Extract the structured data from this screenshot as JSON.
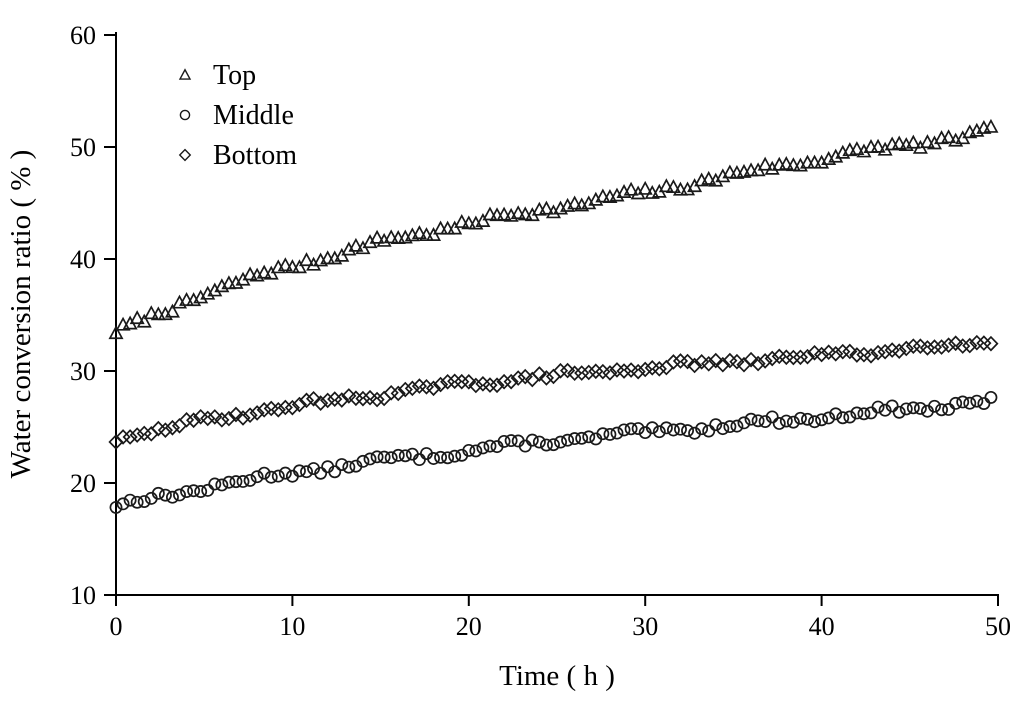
{
  "figure": {
    "background": "#ffffff",
    "stroke_color": "#1a1a1a",
    "axis_color": "#000000"
  },
  "chart_data": {
    "type": "scatter",
    "title": "",
    "xlabel": "Time ( h )",
    "ylabel": "Water conversion ratio ( % )",
    "xlim": [
      0,
      50
    ],
    "ylim": [
      10,
      60
    ],
    "x_ticks": [
      0,
      10,
      20,
      30,
      40,
      50
    ],
    "y_ticks": [
      10,
      20,
      30,
      40,
      50,
      60
    ],
    "grid": false,
    "legend_position": "top-left-inside",
    "sample_step_h": 0.4,
    "t_max": 49.6,
    "anchor_t": [
      0,
      5,
      10,
      15,
      20,
      25,
      30,
      35,
      40,
      45,
      50
    ],
    "series": [
      {
        "name": "Top",
        "marker": "triangle",
        "anchors": [
          33.4,
          36.9,
          39.4,
          41.5,
          43.2,
          44.6,
          45.9,
          47.5,
          49.0,
          50.2,
          51.4
        ],
        "noise": 0.32,
        "seed": 7
      },
      {
        "name": "Middle",
        "marker": "circle",
        "anchors": [
          17.9,
          19.6,
          20.9,
          22.0,
          22.9,
          23.8,
          24.5,
          25.2,
          25.9,
          26.6,
          27.3
        ],
        "noise": 0.3,
        "seed": 13
      },
      {
        "name": "Bottom",
        "marker": "diamond",
        "anchors": [
          23.9,
          25.6,
          26.9,
          27.9,
          28.9,
          29.6,
          30.3,
          30.8,
          31.4,
          32.0,
          32.7
        ],
        "noise": 0.26,
        "seed": 29
      }
    ]
  }
}
